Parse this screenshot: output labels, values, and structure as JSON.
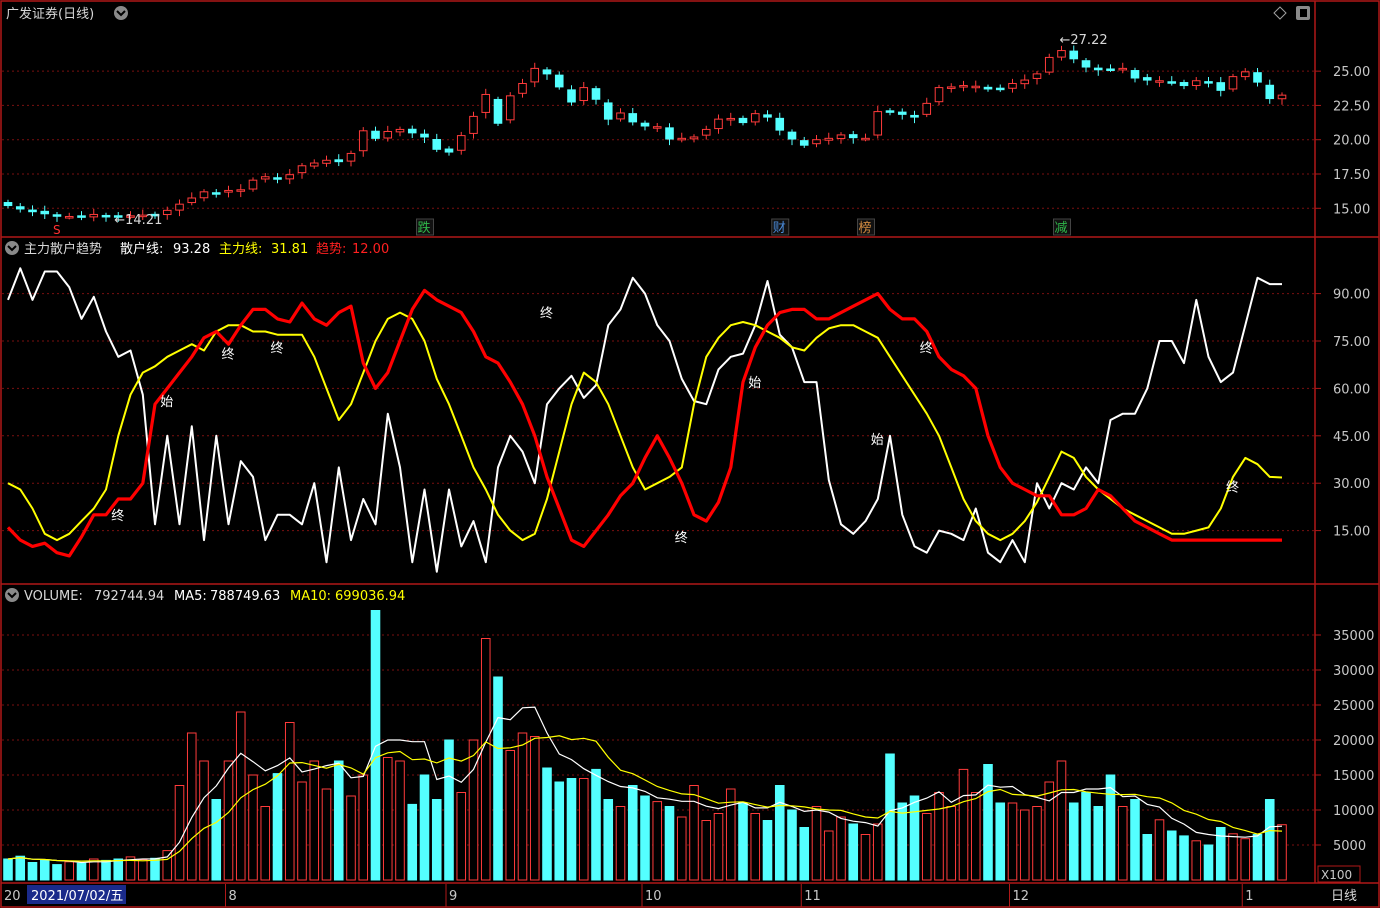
{
  "header": {
    "title": "广发证券(日线)",
    "period_button": "日线",
    "unit_label": "X100"
  },
  "price_panel": {
    "axis_ticks": [
      "25.00",
      "22.50",
      "20.00",
      "17.50",
      "15.00"
    ],
    "tick_values": [
      25.0,
      22.5,
      20.0,
      17.5,
      15.0
    ],
    "ylim": [
      14.0,
      28.0
    ],
    "low_label": "14.21",
    "high_label": "27.22",
    "event_markers": [
      {
        "text": "跌",
        "index": 34,
        "color": "#2fb84a"
      },
      {
        "text": "财",
        "index": 63,
        "color": "#4a8ad8"
      },
      {
        "text": "榜",
        "index": 70,
        "color": "#d08a40"
      },
      {
        "text": "减",
        "index": 86,
        "color": "#2fb84a"
      }
    ],
    "s_marker": {
      "text": "S",
      "index": 4
    }
  },
  "indicator_panel": {
    "title": "主力散户趋势",
    "retail_label": "散户线:",
    "retail_value": "93.28",
    "main_label": "主力线:",
    "main_value": "31.81",
    "trend_label": "趋势:",
    "trend_value": "12.00",
    "axis_ticks": [
      "90.00",
      "75.00",
      "60.00",
      "45.00",
      "30.00",
      "15.00"
    ],
    "tick_values": [
      90,
      75,
      60,
      45,
      30,
      15
    ],
    "ylim": [
      0,
      100
    ],
    "signals": [
      {
        "text": "终",
        "index": 9,
        "value": 20
      },
      {
        "text": "始",
        "index": 13,
        "value": 56
      },
      {
        "text": "终",
        "index": 18,
        "value": 71
      },
      {
        "text": "终",
        "index": 22,
        "value": 73
      },
      {
        "text": "终",
        "index": 44,
        "value": 84
      },
      {
        "text": "终",
        "index": 55,
        "value": 13
      },
      {
        "text": "始",
        "index": 61,
        "value": 62
      },
      {
        "text": "始",
        "index": 71,
        "value": 44
      },
      {
        "text": "终",
        "index": 75,
        "value": 73
      },
      {
        "text": "终",
        "index": 100,
        "value": 29
      }
    ]
  },
  "volume_panel": {
    "volume_label": "VOLUME:",
    "volume_value": "792744.94",
    "ma5_label": "MA5:",
    "ma5_value": "788749.63",
    "ma10_label": "MA10:",
    "ma10_value": "699036.94",
    "axis_ticks": [
      "35000",
      "30000",
      "25000",
      "20000",
      "15000",
      "10000",
      "5000"
    ],
    "tick_values": [
      35000,
      30000,
      25000,
      20000,
      15000,
      10000,
      5000
    ],
    "ylim": [
      0,
      39000
    ]
  },
  "x_axis": {
    "cursor_date": "2021/07/02/五",
    "year_prefix": "20",
    "month_labels": [
      {
        "text": "8",
        "index": 18
      },
      {
        "text": "9",
        "index": 36
      },
      {
        "text": "10",
        "index": 52
      },
      {
        "text": "11",
        "index": 65
      },
      {
        "text": "12",
        "index": 82
      },
      {
        "text": "1",
        "index": 101
      }
    ]
  },
  "colors": {
    "up": "#ff3b3b",
    "down": "#54ffff",
    "retail_line": "#ffffff",
    "main_line": "#ffff00",
    "trend_line": "#ff0000",
    "border": "#b01818",
    "axis_text": "#c8c8c8"
  },
  "chart_data": {
    "type": "candlestick",
    "count": 105,
    "price": {
      "close": [
        15.2,
        14.95,
        14.75,
        14.6,
        14.45,
        14.4,
        14.4,
        14.55,
        14.4,
        14.45,
        14.45,
        14.5,
        14.55,
        14.85,
        15.3,
        15.75,
        16.2,
        16.1,
        16.3,
        16.35,
        17.05,
        17.3,
        17.15,
        17.45,
        18.1,
        18.3,
        18.5,
        18.4,
        19.0,
        20.65,
        20.1,
        20.6,
        20.75,
        20.5,
        20.2,
        19.3,
        19.1,
        20.3,
        21.7,
        23.3,
        21.2,
        23.2,
        24.1,
        25.2,
        24.8,
        23.85,
        22.75,
        23.8,
        22.95,
        21.5,
        21.95,
        21.3,
        21.0,
        20.95,
        20.05,
        20.1,
        20.2,
        20.75,
        21.5,
        21.55,
        21.25,
        21.9,
        21.65,
        20.7,
        20.05,
        19.6,
        20.0,
        20.1,
        20.35,
        20.15,
        20.1,
        22.05,
        22.1,
        21.85,
        21.65,
        22.65,
        23.8,
        23.85,
        23.95,
        23.9,
        23.7,
        23.75,
        24.1,
        24.35,
        24.8,
        26.0,
        26.5,
        25.9,
        25.3,
        25.1,
        25.15,
        25.2,
        24.5,
        24.35,
        24.3,
        24.15,
        23.95,
        24.3,
        24.2,
        23.6,
        24.6,
        24.95,
        24.2,
        23.0,
        23.25
      ],
      "volume": [
        3000,
        3400,
        2500,
        2800,
        2200,
        2600,
        2400,
        3000,
        2800,
        3000,
        3300,
        2900,
        3100,
        4200,
        13500,
        21000,
        17000,
        11500,
        17000,
        24000,
        15000,
        10500,
        15200,
        22500,
        14000,
        17000,
        13000,
        17000,
        12000,
        15000,
        38500,
        17500,
        17000,
        10800,
        15000,
        11500,
        20000,
        12500,
        20000,
        34500,
        29000,
        18500,
        21000,
        20500,
        16000,
        14000,
        14500,
        14500,
        15800,
        11500,
        10500,
        13500,
        12000,
        11200,
        10500,
        9000,
        13500,
        8500,
        9500,
        13000,
        11000,
        9500,
        8500,
        13500,
        10000,
        7500,
        10500,
        7000,
        9000,
        8000,
        6500,
        8000,
        18000,
        11000,
        12000,
        9500,
        12500,
        10500,
        15800,
        12500,
        16500,
        11000,
        11000,
        10000,
        10500,
        14000,
        17000,
        11000,
        12500,
        10500,
        15000,
        10500,
        11500,
        6500,
        8600,
        7000,
        6300,
        5600,
        5000,
        7500,
        6600,
        5900,
        6500,
        11500,
        7900
      ]
    },
    "indicator": {
      "retail": [
        88,
        98,
        88,
        97,
        97,
        92,
        82,
        89,
        78,
        70,
        72,
        58,
        17,
        45,
        17,
        48,
        12,
        45,
        17,
        37,
        32,
        12,
        20,
        20,
        17,
        30,
        5,
        35,
        12,
        25,
        17,
        52,
        35,
        5,
        28,
        2,
        28,
        10,
        18,
        5,
        35,
        45,
        40,
        30,
        55,
        60,
        64,
        57,
        61,
        80,
        85,
        95,
        90,
        80,
        75,
        63,
        56,
        55,
        66,
        70,
        71,
        80,
        94,
        77,
        73,
        62,
        62,
        31,
        17,
        14,
        18,
        25,
        45,
        20,
        10,
        8,
        15,
        14,
        12,
        22,
        8,
        5,
        12,
        5,
        30,
        22,
        30,
        28,
        35,
        30,
        50,
        52,
        52,
        60,
        75,
        75,
        68,
        88,
        70,
        62,
        65,
        80,
        95,
        93,
        93
      ],
      "main": [
        30,
        28,
        22,
        14,
        12,
        14,
        18,
        22,
        28,
        45,
        58,
        65,
        67,
        70,
        72,
        74,
        72,
        78,
        80,
        80,
        78,
        78,
        77,
        77,
        77,
        70,
        60,
        50,
        55,
        65,
        75,
        82,
        84,
        82,
        75,
        63,
        55,
        45,
        35,
        28,
        20,
        15,
        12,
        14,
        25,
        40,
        55,
        65,
        62,
        55,
        45,
        35,
        28,
        30,
        32,
        35,
        55,
        70,
        76,
        80,
        81,
        80,
        78,
        76,
        73,
        72,
        76,
        79,
        80,
        80,
        78,
        76,
        70,
        64,
        58,
        52,
        45,
        35,
        25,
        18,
        14,
        12,
        14,
        18,
        24,
        32,
        40,
        38,
        32,
        28,
        25,
        22,
        20,
        18,
        16,
        14,
        14,
        15,
        16,
        22,
        32,
        38,
        36,
        32,
        31.81
      ],
      "trend": [
        16,
        12,
        10,
        11,
        8,
        7,
        13,
        20,
        20,
        25,
        25,
        30,
        55,
        60,
        65,
        70,
        76,
        78,
        74,
        80,
        85,
        85,
        82,
        81,
        87,
        82,
        80,
        84,
        86,
        68,
        60,
        65,
        75,
        85,
        91,
        88,
        86,
        84,
        78,
        70,
        68,
        62,
        55,
        45,
        32,
        22,
        12,
        10,
        15,
        20,
        26,
        30,
        38,
        45,
        38,
        30,
        20,
        18,
        24,
        35,
        62,
        73,
        80,
        84,
        85,
        85,
        82,
        82,
        84,
        86,
        88,
        90,
        85,
        82,
        82,
        78,
        70,
        66,
        64,
        60,
        45,
        35,
        30,
        28,
        26,
        26,
        20,
        20,
        22,
        28,
        26,
        22,
        18,
        16,
        14,
        12,
        12,
        12,
        12,
        12,
        12,
        12,
        12,
        12,
        12
      ]
    }
  }
}
